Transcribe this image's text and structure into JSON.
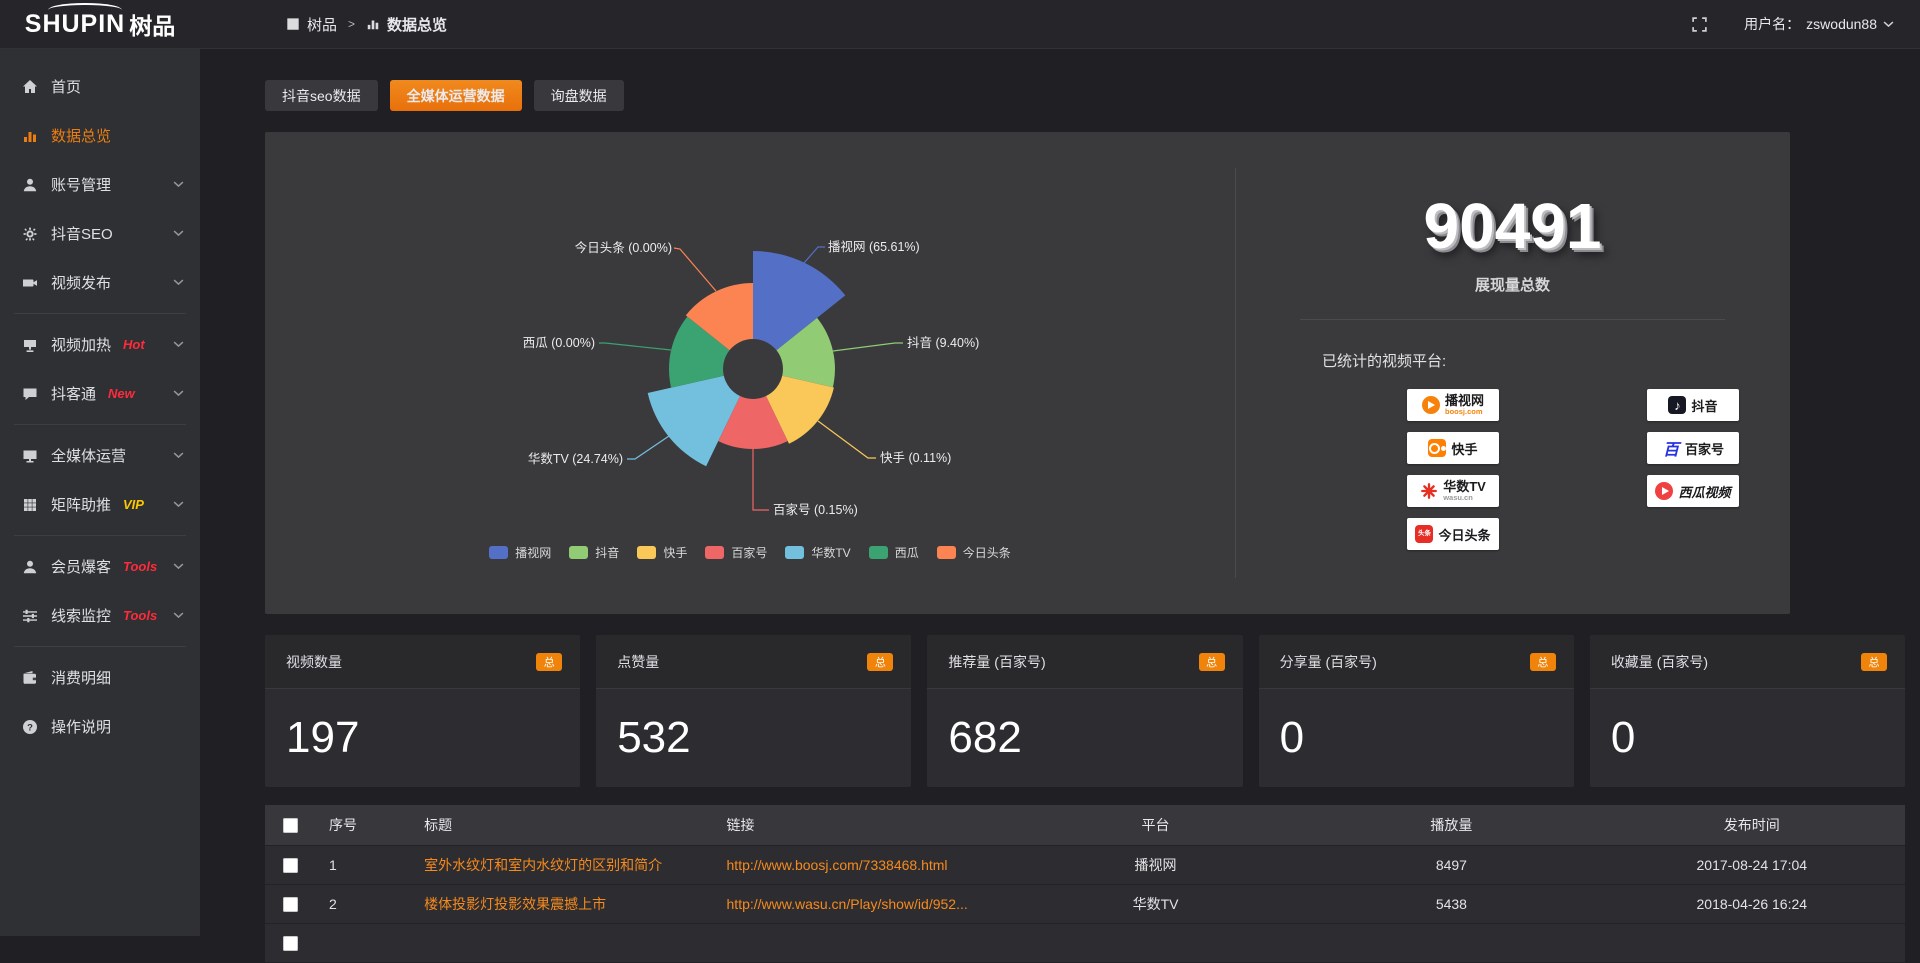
{
  "theme": {
    "accent_orange": "#ec7d10",
    "badge_orange": "#f0830a",
    "link_orange": "#f68a1d",
    "tag_red": "#ff2b3a",
    "tag_yellow": "#fcc800",
    "panel_bg": "#3a3a3d",
    "sidebar_bg": "#2e3034",
    "page_bg": "#202024"
  },
  "header": {
    "logo_en": "SHUPIN",
    "logo_cn": "树品",
    "breadcrumb_root": "树品",
    "breadcrumb_sep": ">",
    "breadcrumb_current": "数据总览",
    "user_label": "用户名：",
    "username": "zswodun88"
  },
  "sidebar": {
    "items": [
      {
        "key": "home",
        "icon": "home",
        "label": "首页"
      },
      {
        "key": "data-overview",
        "icon": "chart",
        "label": "数据总览",
        "active": true
      },
      {
        "key": "account-manage",
        "icon": "user",
        "label": "账号管理",
        "chevron": true
      },
      {
        "key": "douyin-seo",
        "icon": "gear",
        "label": "抖音SEO",
        "chevron": true
      },
      {
        "key": "video-publish",
        "icon": "video",
        "label": "视频发布",
        "chevron": true,
        "divider_after": true
      },
      {
        "key": "video-heat",
        "icon": "screen",
        "label": "视频加热",
        "tag": "Hot",
        "tag_color": "#ff2b3a",
        "chevron": true
      },
      {
        "key": "douketong",
        "icon": "chat",
        "label": "抖客通",
        "tag": "New",
        "tag_color": "#ff2b3a",
        "chevron": true,
        "divider_after": true
      },
      {
        "key": "media-operation",
        "icon": "monitor",
        "label": "全媒体运营",
        "chevron": true
      },
      {
        "key": "matrix-boost",
        "icon": "grid",
        "label": "矩阵助推",
        "tag": "VIP",
        "tag_color": "#fcc800",
        "chevron": true,
        "divider_after": true
      },
      {
        "key": "member-burst",
        "icon": "member",
        "label": "会员爆客",
        "tag": "Tools",
        "tag_color": "#ff2b3a",
        "chevron": true
      },
      {
        "key": "clue-monitor",
        "icon": "sliders",
        "label": "线索监控",
        "tag": "Tools",
        "tag_color": "#ff2b3a",
        "chevron": true,
        "divider_after": true
      },
      {
        "key": "consume-detail",
        "icon": "wallet",
        "label": "消费明细"
      },
      {
        "key": "operation-guide",
        "icon": "help",
        "label": "操作说明"
      }
    ]
  },
  "tabs": [
    {
      "key": "douyin-seo-data",
      "label": "抖音seo数据"
    },
    {
      "key": "media-operation-data",
      "label": "全媒体运营数据",
      "active": true
    },
    {
      "key": "inquiry-data",
      "label": "询盘数据"
    }
  ],
  "chart_data": {
    "type": "pie",
    "subtype": "nightingale-rose",
    "unit": "%",
    "items": [
      {
        "name": "播视网",
        "value": 65.61,
        "color": "#5470c6"
      },
      {
        "name": "抖音",
        "value": 9.4,
        "color": "#91cc75"
      },
      {
        "name": "快手",
        "value": 0.11,
        "color": "#fac858"
      },
      {
        "name": "百家号",
        "value": 0.15,
        "color": "#ee6666"
      },
      {
        "name": "华数TV",
        "value": 24.74,
        "color": "#73c0de"
      },
      {
        "name": "西瓜",
        "value": 0.0,
        "color": "#3ba272"
      },
      {
        "name": "今日头条",
        "value": 0.0,
        "color": "#fc8452"
      }
    ],
    "display_radii": [
      118,
      82,
      83,
      80,
      108,
      84,
      86
    ],
    "inner_radius": 30,
    "label_format": "{name} ({value}%)",
    "legend": [
      "播视网",
      "抖音",
      "快手",
      "百家号",
      "华数TV",
      "西瓜",
      "今日头条"
    ],
    "legend_position": "bottom"
  },
  "summary": {
    "total_value": "90491",
    "total_label": "展现量总数",
    "platforms_title": "已统计的视频平台:",
    "platform_columns": [
      [
        {
          "name": "播视网",
          "sub": "boosj.com",
          "style": "boosj"
        },
        {
          "name": "快手",
          "style": "kuaishou"
        },
        {
          "name": "华数TV",
          "sub": "wasu.cn",
          "style": "wasu"
        },
        {
          "name": "今日头条",
          "icon_text": "头条",
          "style": "toutiao"
        }
      ],
      [
        {
          "name": "抖音",
          "style": "douyin"
        },
        {
          "name": "百家号",
          "icon_text": "百",
          "style": "baijia"
        },
        {
          "name": "西瓜视频",
          "style": "xigua"
        }
      ]
    ]
  },
  "stat_cards": [
    {
      "key": "video-count",
      "label": "视频数量",
      "badge": "总",
      "value": "197"
    },
    {
      "key": "like-count",
      "label": "点赞量",
      "badge": "总",
      "value": "532"
    },
    {
      "key": "recommend-count",
      "label": "推荐量 (百家号)",
      "badge": "总",
      "value": "682"
    },
    {
      "key": "share-count",
      "label": "分享量 (百家号)",
      "badge": "总",
      "value": "0"
    },
    {
      "key": "favorite-count",
      "label": "收藏量 (百家号)",
      "badge": "总",
      "value": "0"
    }
  ],
  "table": {
    "columns": [
      {
        "key": "select",
        "label": ""
      },
      {
        "key": "index",
        "label": "序号"
      },
      {
        "key": "title",
        "label": "标题"
      },
      {
        "key": "link",
        "label": "链接"
      },
      {
        "key": "platform",
        "label": "平台"
      },
      {
        "key": "views",
        "label": "播放量"
      },
      {
        "key": "time",
        "label": "发布时间"
      }
    ],
    "rows": [
      {
        "index": "1",
        "title": "室外水纹灯和室内水纹灯的区别和简介",
        "link": "http://www.boosj.com/7338468.html",
        "platform": "播视网",
        "views": "8497",
        "time": "2017-08-24 17:04"
      },
      {
        "index": "2",
        "title": "楼体投影灯投影效果震撼上市",
        "link": "http://www.wasu.cn/Play/show/id/952...",
        "platform": "华数TV",
        "views": "5438",
        "time": "2018-04-26 16:24"
      },
      {
        "index": "",
        "title": "",
        "link": "",
        "platform": "",
        "views": "",
        "time": ""
      }
    ]
  }
}
